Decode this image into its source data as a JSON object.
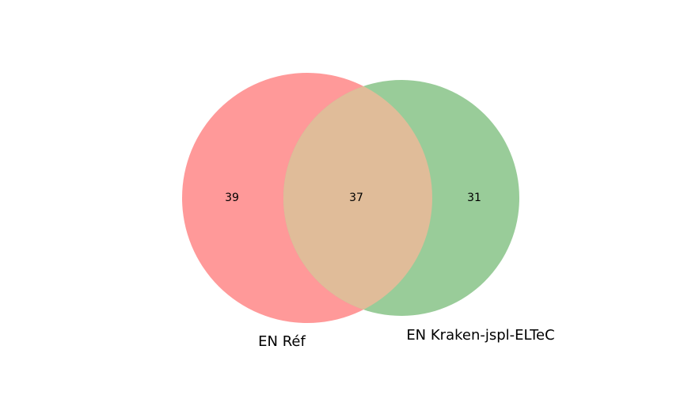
{
  "venn": {
    "sets": [
      {
        "label": "EN Réf",
        "color": "#ff9999"
      },
      {
        "label": "EN Kraken-jspl-ELTeC",
        "color": "#99cc99"
      }
    ],
    "overlap_color": "#e0bc99",
    "counts": {
      "left_only": "39",
      "intersection": "37",
      "right_only": "31"
    }
  }
}
